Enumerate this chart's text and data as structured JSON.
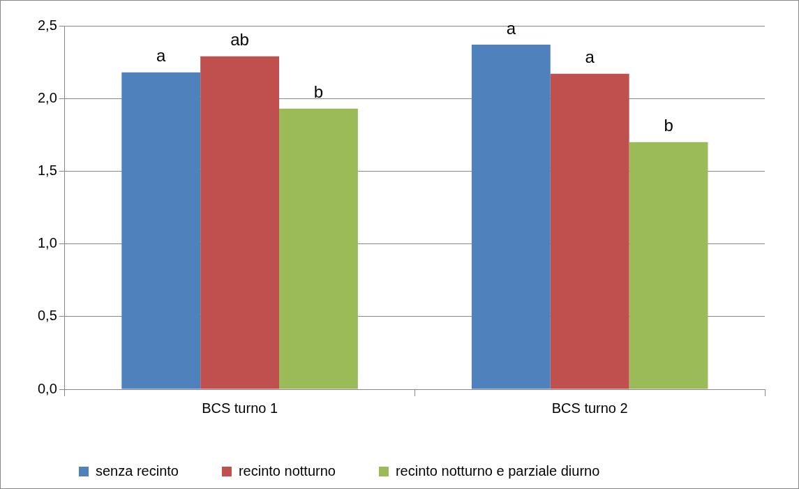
{
  "chart_data": {
    "type": "bar",
    "categories": [
      "BCS turno 1",
      "BCS turno 2"
    ],
    "series": [
      {
        "name": "senza recinto",
        "color": "#4f81bd",
        "values": [
          2.18,
          2.37
        ]
      },
      {
        "name": "recinto notturno",
        "color": "#c0504d",
        "values": [
          2.29,
          2.17
        ]
      },
      {
        "name": "recinto notturno e parziale diurno",
        "color": "#9bbb59",
        "values": [
          1.93,
          1.7
        ]
      }
    ],
    "ylim": [
      0,
      2.5
    ],
    "yticks": [
      {
        "value": 0,
        "label": "0,0"
      },
      {
        "value": 0.5,
        "label": "0,5"
      },
      {
        "value": 1,
        "label": "1,0"
      },
      {
        "value": 1.5,
        "label": "1,5"
      },
      {
        "value": 2,
        "label": "2,0"
      },
      {
        "value": 2.5,
        "label": "2,5"
      }
    ],
    "grid": "y",
    "legend": "bottom",
    "annotations": [
      "a",
      "ab",
      "b",
      "a",
      "a",
      "b"
    ]
  }
}
